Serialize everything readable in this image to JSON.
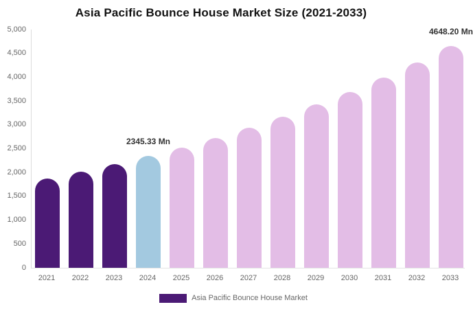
{
  "chart_data": {
    "type": "bar",
    "title": "Asia Pacific Bounce House Market Size (2021-2033)",
    "unit": "Mn",
    "categories": [
      "2021",
      "2022",
      "2023",
      "2024",
      "2025",
      "2026",
      "2027",
      "2028",
      "2029",
      "2030",
      "2031",
      "2032",
      "2033"
    ],
    "values": [
      1870,
      2015,
      2175,
      2345.33,
      2525,
      2730,
      2945,
      3175,
      3425,
      3695,
      3990,
      4305,
      4648.2
    ],
    "bar_colors": [
      "#4b1a75",
      "#4b1a75",
      "#4b1a75",
      "#a3c9e0",
      "#e3bde6",
      "#e3bde6",
      "#e3bde6",
      "#e3bde6",
      "#e3bde6",
      "#e3bde6",
      "#e3bde6",
      "#e3bde6",
      "#e3bde6"
    ],
    "ylim": [
      0,
      5000
    ],
    "ytick_step": 500,
    "ytick_labels": [
      "0",
      "500",
      "1,000",
      "1,500",
      "2,000",
      "2,500",
      "3,000",
      "3,500",
      "4,000",
      "4,500",
      "5,000"
    ],
    "grid": false,
    "annotations": [
      {
        "category": "2024",
        "index": 3,
        "text": "2345.33 Mn"
      },
      {
        "category": "2033",
        "index": 12,
        "text": "4648.20 Mn"
      }
    ],
    "legend": {
      "position": "bottom",
      "label": "Asia Pacific Bounce House Market",
      "swatch_color": "#4b1a75"
    },
    "colors": {
      "historical_purple": "#4b1a75",
      "current_year_blue": "#a3c9e0",
      "forecast_pink": "#e3bde6",
      "axis_line": "#dbdbdb",
      "baseline": "#e4e4e4",
      "tick_label": "#666666",
      "annotation_text": "#333333",
      "title_text": "#111111"
    }
  }
}
